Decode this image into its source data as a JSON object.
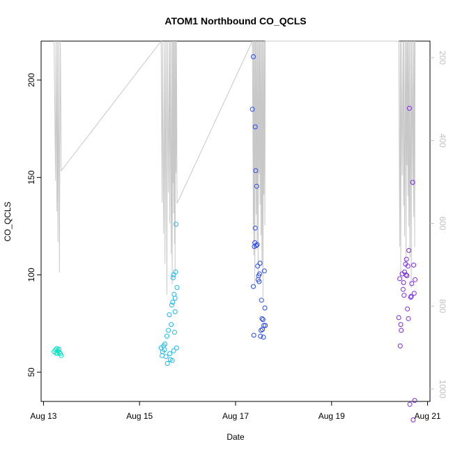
{
  "chart_data": {
    "type": "scatter",
    "title": "ATOM1 Northbound CO_QCLS",
    "xlabel": "Date",
    "ylabel": "CO_QCLS",
    "x_ticks": [
      "Aug 13",
      "Aug 15",
      "Aug 17",
      "Aug 19",
      "Aug 21"
    ],
    "y_ticks": [
      "50",
      "100",
      "150",
      "200"
    ],
    "ylim": [
      35,
      220
    ],
    "xlim_days": [
      "Aug 12.95",
      "Aug 21.05"
    ],
    "secondary_axis": {
      "label": "",
      "ticks": [
        "200",
        "400",
        "600",
        "800",
        "1000"
      ],
      "lim": [
        160,
        1030
      ],
      "inverted": true,
      "color": "#c0c0c0"
    },
    "series": [
      {
        "segment": "Aug 13",
        "color": "#00e5c8",
        "points": [
          [
            13.22,
            60.5
          ],
          [
            13.25,
            61.5
          ],
          [
            13.26,
            59.8
          ],
          [
            13.28,
            62.2
          ],
          [
            13.3,
            60.8
          ],
          [
            13.32,
            61.8
          ],
          [
            13.33,
            60.2
          ],
          [
            13.35,
            59.5
          ],
          [
            13.37,
            58.5
          ],
          [
            13.29,
            59.7
          ]
        ]
      },
      {
        "segment": "Aug 15",
        "color": "#19b9f0",
        "points": [
          [
            15.45,
            62.5
          ],
          [
            15.47,
            58.5
          ],
          [
            15.48,
            60.5
          ],
          [
            15.5,
            63.5
          ],
          [
            15.52,
            61.5
          ],
          [
            15.53,
            64.5
          ],
          [
            15.55,
            58.0
          ],
          [
            15.57,
            68.5
          ],
          [
            15.58,
            54.5
          ],
          [
            15.6,
            71.5
          ],
          [
            15.62,
            79.5
          ],
          [
            15.63,
            59.5
          ],
          [
            15.64,
            56.5
          ],
          [
            15.66,
            74.5
          ],
          [
            15.67,
            84.5
          ],
          [
            15.68,
            56.0
          ],
          [
            15.69,
            86.0
          ],
          [
            15.7,
            98.5
          ],
          [
            15.71,
            61.0
          ],
          [
            15.72,
            90.0
          ],
          [
            15.73,
            70.5
          ],
          [
            15.74,
            81.0
          ],
          [
            15.75,
            101.5
          ],
          [
            15.76,
            126.0
          ],
          [
            15.77,
            62.5
          ],
          [
            15.78,
            93.5
          ],
          [
            15.74,
            88.0
          ],
          [
            15.71,
            100.0
          ]
        ]
      },
      {
        "segment": "Aug 17",
        "color": "#2446f0",
        "points": [
          [
            17.35,
            185.0
          ],
          [
            17.37,
            212.0
          ],
          [
            17.37,
            94.0
          ],
          [
            17.38,
            69.0
          ],
          [
            17.39,
            114.5
          ],
          [
            17.4,
            116.5
          ],
          [
            17.41,
            176.0
          ],
          [
            17.41,
            124.0
          ],
          [
            17.42,
            153.5
          ],
          [
            17.43,
            115.0
          ],
          [
            17.44,
            145.5
          ],
          [
            17.45,
            115.5
          ],
          [
            17.46,
            104.5
          ],
          [
            17.47,
            97.5
          ],
          [
            17.48,
            99.5
          ],
          [
            17.49,
            96.5
          ],
          [
            17.5,
            100.5
          ],
          [
            17.51,
            106.0
          ],
          [
            17.52,
            68.5
          ],
          [
            17.53,
            71.5
          ],
          [
            17.54,
            87.0
          ],
          [
            17.55,
            77.5
          ],
          [
            17.56,
            72.0
          ],
          [
            17.57,
            77.0
          ],
          [
            17.58,
            68.0
          ],
          [
            17.59,
            74.0
          ],
          [
            17.6,
            102.0
          ],
          [
            17.61,
            83.0
          ],
          [
            17.62,
            74.0
          ]
        ]
      },
      {
        "segment": "Aug 20",
        "color": "#7a28e6",
        "points": [
          [
            20.4,
            78.0
          ],
          [
            20.42,
            98.0
          ],
          [
            20.43,
            63.5
          ],
          [
            20.44,
            74.5
          ],
          [
            20.45,
            71.5
          ],
          [
            20.47,
            100.5
          ],
          [
            20.49,
            92.5
          ],
          [
            20.5,
            96.0
          ],
          [
            20.51,
            89.5
          ],
          [
            20.52,
            101.5
          ],
          [
            20.54,
            105.5
          ],
          [
            20.55,
            100.0
          ],
          [
            20.56,
            108.0
          ],
          [
            20.57,
            99.5
          ],
          [
            20.58,
            82.5
          ],
          [
            20.59,
            104.5
          ],
          [
            20.6,
            77.5
          ],
          [
            20.61,
            112.5
          ],
          [
            20.62,
            185.5
          ],
          [
            20.63,
            33.5
          ],
          [
            20.65,
            88.5
          ],
          [
            20.66,
            89.0
          ],
          [
            20.67,
            95.5
          ],
          [
            20.69,
            147.5
          ],
          [
            20.7,
            25.5
          ],
          [
            20.71,
            105.0
          ],
          [
            20.72,
            90.5
          ],
          [
            20.73,
            35.5
          ],
          [
            20.74,
            97.5
          ]
        ]
      }
    ]
  }
}
